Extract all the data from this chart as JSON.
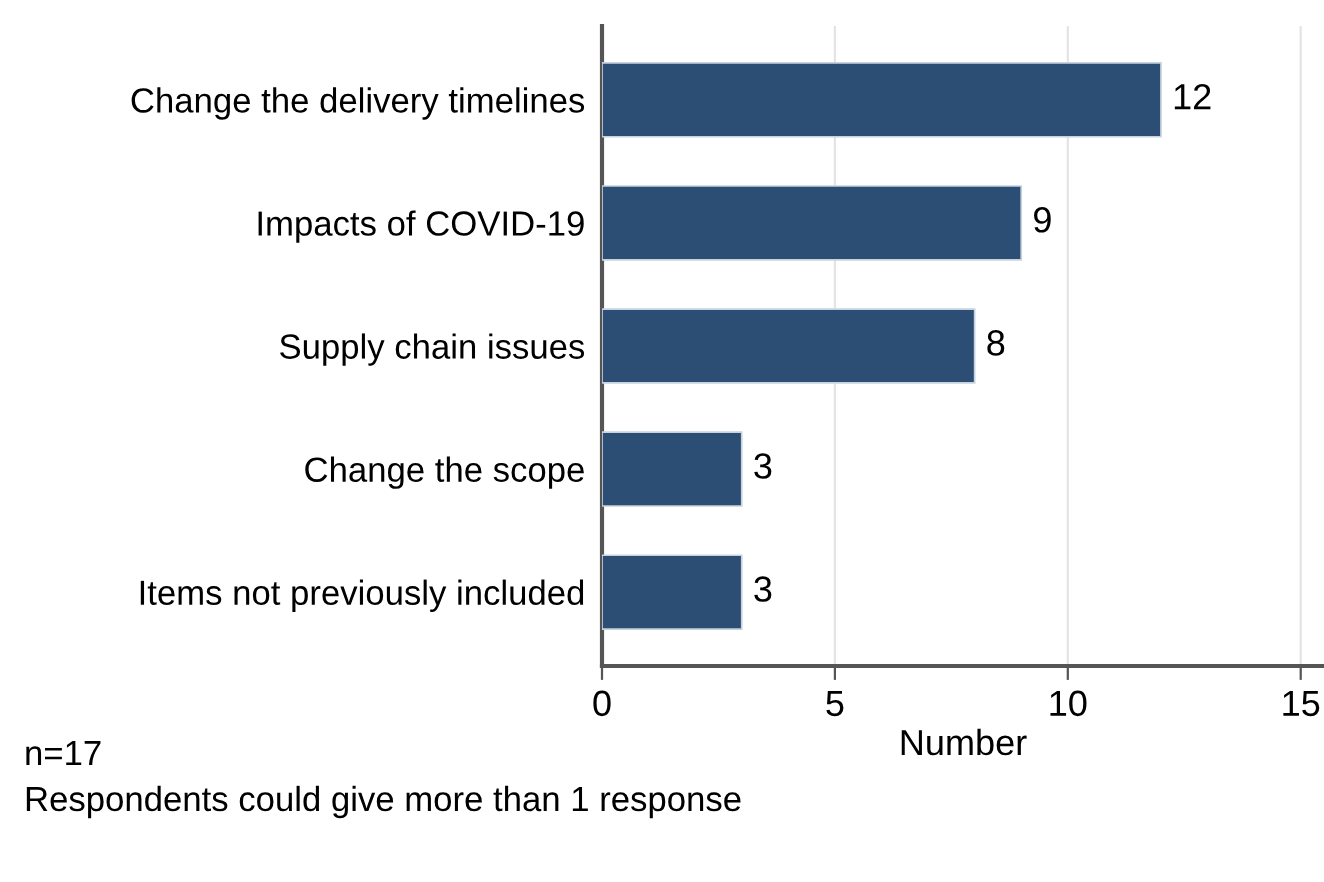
{
  "chart_data": {
    "type": "bar",
    "orientation": "horizontal",
    "xlabel": "Number",
    "categories": [
      "Change the delivery timelines",
      "Impacts of COVID-19",
      "Supply chain issues",
      "Change the scope",
      "Items not previously included"
    ],
    "values": [
      12,
      9,
      8,
      3,
      3
    ],
    "color": "#2c4e74",
    "data_labels": true,
    "xlim": [
      0,
      15.5
    ],
    "xticks": [
      0,
      5,
      10,
      15
    ],
    "grid": "x",
    "legend": false,
    "annotations": [
      "n=17",
      "Respondents could give more than 1 response"
    ]
  }
}
